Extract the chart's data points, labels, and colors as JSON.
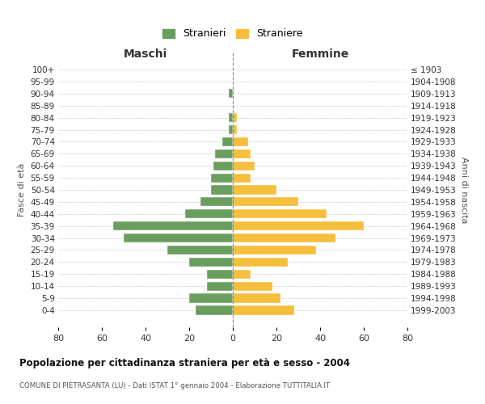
{
  "age_groups": [
    "0-4",
    "5-9",
    "10-14",
    "15-19",
    "20-24",
    "25-29",
    "30-34",
    "35-39",
    "40-44",
    "45-49",
    "50-54",
    "55-59",
    "60-64",
    "65-69",
    "70-74",
    "75-79",
    "80-84",
    "85-89",
    "90-94",
    "95-99",
    "100+"
  ],
  "birth_years": [
    "1999-2003",
    "1994-1998",
    "1989-1993",
    "1984-1988",
    "1979-1983",
    "1974-1978",
    "1969-1973",
    "1964-1968",
    "1959-1963",
    "1954-1958",
    "1949-1953",
    "1944-1948",
    "1939-1943",
    "1934-1938",
    "1929-1933",
    "1924-1928",
    "1919-1923",
    "1914-1918",
    "1909-1913",
    "1904-1908",
    "≤ 1903"
  ],
  "maschi": [
    17,
    20,
    12,
    12,
    20,
    30,
    50,
    55,
    22,
    15,
    10,
    10,
    9,
    8,
    5,
    2,
    2,
    0,
    2,
    0,
    0
  ],
  "femmine": [
    28,
    22,
    18,
    8,
    25,
    38,
    47,
    60,
    43,
    30,
    20,
    8,
    10,
    8,
    7,
    2,
    2,
    0,
    0,
    0,
    0
  ],
  "maschi_color": "#6a9e5e",
  "femmine_color": "#f5be3c",
  "background_color": "#ffffff",
  "grid_color": "#cccccc",
  "title": "Popolazione per cittadinanza straniera per età e sesso - 2004",
  "subtitle": "COMUNE DI PIETRASANTA (LU) - Dati ISTAT 1° gennaio 2004 - Elaborazione TUTTITALIA.IT",
  "xlabel_left": "Maschi",
  "xlabel_right": "Femmine",
  "ylabel_left": "Fasce di età",
  "ylabel_right": "Anni di nascita",
  "xlim": 80,
  "legend_maschi": "Stranieri",
  "legend_femmine": "Straniere",
  "bar_height": 0.75
}
